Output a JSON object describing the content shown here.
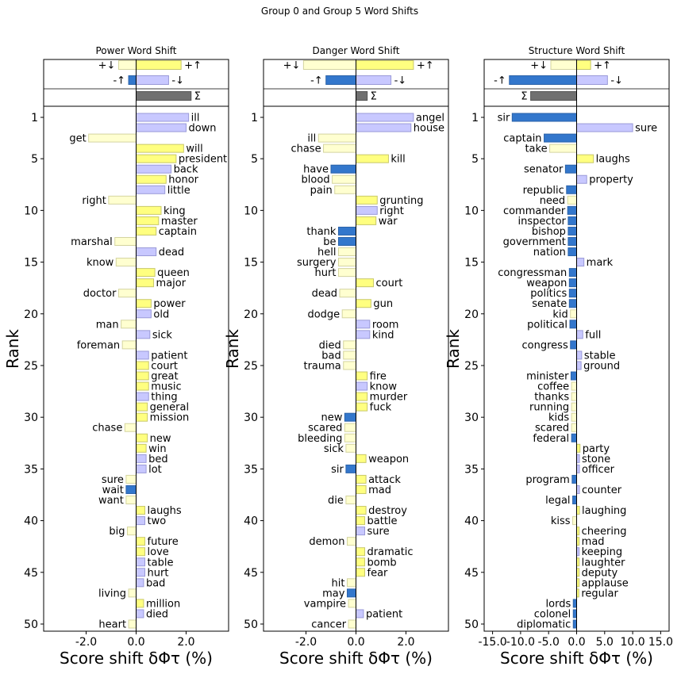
{
  "figure": {
    "suptitle": "Group 0 and Group 5 Word Shifts"
  },
  "colors": {
    "pos_up": "#ffff80",
    "pos_down": "#c8c8ff",
    "neg_up": "#3377cc",
    "neg_down": "#ffffd0",
    "total": "#707070"
  },
  "chart_data": [
    {
      "type": "bar",
      "title": "Power Word Shift",
      "xlabel": "Score shift δΦτ (%)",
      "ylabel": "Rank",
      "xlim": [
        -3.7,
        3.7
      ],
      "xticks": [
        -2.0,
        0.0,
        2.0
      ],
      "xtick_labels": [
        "-2.0",
        "0.0",
        "2.0"
      ],
      "yticks": [
        1,
        5,
        10,
        15,
        20,
        25,
        30,
        35,
        40,
        45,
        50
      ],
      "grid": false,
      "summary": [
        {
          "label_left": "+↓",
          "label_right": "+↑",
          "neg": -0.7,
          "pos": 1.8,
          "neg_type": "neg_down",
          "pos_type": "pos_up"
        },
        {
          "label_left": "-↑",
          "label_right": "-↓",
          "neg": -0.3,
          "pos": 1.3,
          "neg_type": "neg_up",
          "pos_type": "pos_down"
        },
        {
          "label_left": "",
          "label_right": "Σ",
          "neg": 0,
          "pos": 2.2,
          "neg_type": "total",
          "pos_type": "total"
        }
      ],
      "words": [
        {
          "word": "ill",
          "value": 2.1,
          "type": "pos_down"
        },
        {
          "word": "down",
          "value": 2.0,
          "type": "pos_down"
        },
        {
          "word": "get",
          "value": -1.9,
          "type": "neg_down"
        },
        {
          "word": "will",
          "value": 1.9,
          "type": "pos_up"
        },
        {
          "word": "president",
          "value": 1.6,
          "type": "pos_up"
        },
        {
          "word": "back",
          "value": 1.4,
          "type": "pos_down"
        },
        {
          "word": "honor",
          "value": 1.2,
          "type": "pos_up"
        },
        {
          "word": "little",
          "value": 1.15,
          "type": "pos_down"
        },
        {
          "word": "right",
          "value": -1.1,
          "type": "neg_down"
        },
        {
          "word": "king",
          "value": 1.0,
          "type": "pos_up"
        },
        {
          "word": "master",
          "value": 0.9,
          "type": "pos_up"
        },
        {
          "word": "captain",
          "value": 0.8,
          "type": "pos_up"
        },
        {
          "word": "marshal",
          "value": -0.85,
          "type": "neg_down"
        },
        {
          "word": "dead",
          "value": 0.8,
          "type": "pos_down"
        },
        {
          "word": "know",
          "value": -0.8,
          "type": "neg_down"
        },
        {
          "word": "queen",
          "value": 0.75,
          "type": "pos_up"
        },
        {
          "word": "major",
          "value": 0.7,
          "type": "pos_up"
        },
        {
          "word": "doctor",
          "value": -0.7,
          "type": "neg_down"
        },
        {
          "word": "power",
          "value": 0.6,
          "type": "pos_up"
        },
        {
          "word": "old",
          "value": 0.6,
          "type": "pos_down"
        },
        {
          "word": "man",
          "value": -0.6,
          "type": "neg_down"
        },
        {
          "word": "sick",
          "value": 0.55,
          "type": "pos_down"
        },
        {
          "word": "foreman",
          "value": -0.55,
          "type": "neg_down"
        },
        {
          "word": "patient",
          "value": 0.5,
          "type": "pos_down"
        },
        {
          "word": "court",
          "value": 0.5,
          "type": "pos_up"
        },
        {
          "word": "great",
          "value": 0.5,
          "type": "pos_up"
        },
        {
          "word": "music",
          "value": 0.5,
          "type": "pos_up"
        },
        {
          "word": "thing",
          "value": 0.5,
          "type": "pos_down"
        },
        {
          "word": "general",
          "value": 0.45,
          "type": "pos_up"
        },
        {
          "word": "mission",
          "value": 0.45,
          "type": "pos_up"
        },
        {
          "word": "chase",
          "value": -0.45,
          "type": "neg_down"
        },
        {
          "word": "new",
          "value": 0.45,
          "type": "pos_up"
        },
        {
          "word": "win",
          "value": 0.4,
          "type": "pos_up"
        },
        {
          "word": "bed",
          "value": 0.4,
          "type": "pos_down"
        },
        {
          "word": "lot",
          "value": 0.4,
          "type": "pos_down"
        },
        {
          "word": "sure",
          "value": -0.4,
          "type": "neg_down"
        },
        {
          "word": "wait",
          "value": -0.4,
          "type": "neg_up"
        },
        {
          "word": "want",
          "value": -0.4,
          "type": "neg_down"
        },
        {
          "word": "laughs",
          "value": 0.35,
          "type": "pos_up"
        },
        {
          "word": "two",
          "value": 0.35,
          "type": "pos_down"
        },
        {
          "word": "big",
          "value": -0.35,
          "type": "neg_down"
        },
        {
          "word": "future",
          "value": 0.35,
          "type": "pos_up"
        },
        {
          "word": "love",
          "value": 0.35,
          "type": "pos_up"
        },
        {
          "word": "table",
          "value": 0.35,
          "type": "pos_down"
        },
        {
          "word": "hurt",
          "value": 0.35,
          "type": "pos_down"
        },
        {
          "word": "bad",
          "value": 0.3,
          "type": "pos_down"
        },
        {
          "word": "living",
          "value": -0.3,
          "type": "neg_down"
        },
        {
          "word": "million",
          "value": 0.3,
          "type": "pos_up"
        },
        {
          "word": "died",
          "value": 0.3,
          "type": "pos_down"
        },
        {
          "word": "heart",
          "value": -0.3,
          "type": "neg_down"
        }
      ]
    },
    {
      "type": "bar",
      "title": "Danger Word Shift",
      "xlabel": "Score shift δΦτ (%)",
      "ylabel": "Rank",
      "xlim": [
        -3.7,
        3.7
      ],
      "xticks": [
        -2.0,
        0.0,
        2.0
      ],
      "xtick_labels": [
        "-2.0",
        "0.0",
        "2.0"
      ],
      "yticks": [
        1,
        5,
        10,
        15,
        20,
        25,
        30,
        35,
        40,
        45,
        50
      ],
      "grid": false,
      "summary": [
        {
          "label_left": "+↓",
          "label_right": "+↑",
          "neg": -2.1,
          "pos": 2.3,
          "neg_type": "neg_down",
          "pos_type": "pos_up"
        },
        {
          "label_left": "-↑",
          "label_right": "-↓",
          "neg": -1.2,
          "pos": 1.4,
          "neg_type": "neg_up",
          "pos_type": "pos_down"
        },
        {
          "label_left": "",
          "label_right": "Σ",
          "neg": 0,
          "pos": 0.45,
          "neg_type": "total",
          "pos_type": "total"
        }
      ],
      "words": [
        {
          "word": "angel",
          "value": 2.3,
          "type": "pos_down"
        },
        {
          "word": "house",
          "value": 2.2,
          "type": "pos_down"
        },
        {
          "word": "ill",
          "value": -1.5,
          "type": "neg_down"
        },
        {
          "word": "chase",
          "value": -1.3,
          "type": "neg_down"
        },
        {
          "word": "kill",
          "value": 1.3,
          "type": "pos_up"
        },
        {
          "word": "have",
          "value": -1.0,
          "type": "neg_up"
        },
        {
          "word": "blood",
          "value": -0.95,
          "type": "neg_down"
        },
        {
          "word": "pain",
          "value": -0.85,
          "type": "neg_down"
        },
        {
          "word": "grunting",
          "value": 0.85,
          "type": "pos_up"
        },
        {
          "word": "right",
          "value": 0.85,
          "type": "pos_down"
        },
        {
          "word": "war",
          "value": 0.8,
          "type": "pos_up"
        },
        {
          "word": "thank",
          "value": -0.7,
          "type": "neg_up"
        },
        {
          "word": "be",
          "value": -0.7,
          "type": "neg_up"
        },
        {
          "word": "hell",
          "value": -0.7,
          "type": "neg_down"
        },
        {
          "word": "surgery",
          "value": -0.7,
          "type": "neg_down"
        },
        {
          "word": "hurt",
          "value": -0.7,
          "type": "neg_down"
        },
        {
          "word": "court",
          "value": 0.7,
          "type": "pos_up"
        },
        {
          "word": "dead",
          "value": -0.65,
          "type": "neg_down"
        },
        {
          "word": "gun",
          "value": 0.6,
          "type": "pos_up"
        },
        {
          "word": "dodge",
          "value": -0.55,
          "type": "neg_down"
        },
        {
          "word": "room",
          "value": 0.55,
          "type": "pos_down"
        },
        {
          "word": "kind",
          "value": 0.55,
          "type": "pos_down"
        },
        {
          "word": "died",
          "value": -0.5,
          "type": "neg_down"
        },
        {
          "word": "bad",
          "value": -0.5,
          "type": "neg_down"
        },
        {
          "word": "trauma",
          "value": -0.5,
          "type": "neg_down"
        },
        {
          "word": "fire",
          "value": 0.45,
          "type": "pos_up"
        },
        {
          "word": "know",
          "value": 0.45,
          "type": "pos_down"
        },
        {
          "word": "murder",
          "value": 0.45,
          "type": "pos_up"
        },
        {
          "word": "fuck",
          "value": 0.45,
          "type": "pos_up"
        },
        {
          "word": "new",
          "value": -0.45,
          "type": "neg_up"
        },
        {
          "word": "scared",
          "value": -0.45,
          "type": "neg_down"
        },
        {
          "word": "bleeding",
          "value": -0.45,
          "type": "neg_down"
        },
        {
          "word": "sick",
          "value": -0.4,
          "type": "neg_down"
        },
        {
          "word": "weapon",
          "value": 0.4,
          "type": "pos_up"
        },
        {
          "word": "sir",
          "value": -0.4,
          "type": "neg_up"
        },
        {
          "word": "attack",
          "value": 0.4,
          "type": "pos_up"
        },
        {
          "word": "mad",
          "value": 0.4,
          "type": "pos_up"
        },
        {
          "word": "die",
          "value": -0.4,
          "type": "neg_down"
        },
        {
          "word": "destroy",
          "value": 0.4,
          "type": "pos_up"
        },
        {
          "word": "battle",
          "value": 0.35,
          "type": "pos_up"
        },
        {
          "word": "sure",
          "value": 0.35,
          "type": "pos_down"
        },
        {
          "word": "demon",
          "value": -0.35,
          "type": "neg_down"
        },
        {
          "word": "dramatic",
          "value": 0.35,
          "type": "pos_up"
        },
        {
          "word": "bomb",
          "value": 0.35,
          "type": "pos_up"
        },
        {
          "word": "fear",
          "value": 0.35,
          "type": "pos_up"
        },
        {
          "word": "hit",
          "value": -0.35,
          "type": "neg_down"
        },
        {
          "word": "may",
          "value": -0.35,
          "type": "neg_up"
        },
        {
          "word": "vampire",
          "value": -0.3,
          "type": "neg_down"
        },
        {
          "word": "patient",
          "value": 0.3,
          "type": "pos_down"
        },
        {
          "word": "cancer",
          "value": -0.3,
          "type": "neg_down"
        }
      ]
    },
    {
      "type": "bar",
      "title": "Structure Word Shift",
      "xlabel": "Score shift δΦτ (%)",
      "ylabel": "Rank",
      "xlim": [
        -16.5,
        16.5
      ],
      "xticks": [
        -15.0,
        -10.0,
        -5.0,
        0.0,
        5.0,
        10.0,
        15.0
      ],
      "xtick_labels": [
        "-15.0",
        "-10.0",
        "-5.0",
        "0.0",
        "5.0",
        "10.0",
        "15.0"
      ],
      "yticks": [
        1,
        5,
        10,
        15,
        20,
        25,
        30,
        35,
        40,
        45,
        50
      ],
      "grid": false,
      "summary": [
        {
          "label_left": "+↓",
          "label_right": "+↑",
          "neg": -4.6,
          "pos": 2.5,
          "neg_type": "neg_down",
          "pos_type": "pos_up"
        },
        {
          "label_left": "-↑",
          "label_right": "-↓",
          "neg": -12.0,
          "pos": 5.5,
          "neg_type": "neg_up",
          "pos_type": "pos_down"
        },
        {
          "label_left": "Σ",
          "label_right": "",
          "neg": -8.2,
          "pos": 0,
          "neg_type": "total",
          "pos_type": "total"
        }
      ],
      "words": [
        {
          "word": "sir",
          "value": -11.5,
          "type": "neg_up"
        },
        {
          "word": "sure",
          "value": 10.0,
          "type": "pos_down"
        },
        {
          "word": "captain",
          "value": -5.8,
          "type": "neg_up"
        },
        {
          "word": "take",
          "value": -4.8,
          "type": "neg_down"
        },
        {
          "word": "laughs",
          "value": 3.0,
          "type": "pos_up"
        },
        {
          "word": "senator",
          "value": -2.0,
          "type": "neg_up"
        },
        {
          "word": "property",
          "value": 1.8,
          "type": "pos_down"
        },
        {
          "word": "republic",
          "value": -1.8,
          "type": "neg_up"
        },
        {
          "word": "need",
          "value": -1.6,
          "type": "neg_down"
        },
        {
          "word": "commander",
          "value": -1.6,
          "type": "neg_up"
        },
        {
          "word": "inspector",
          "value": -1.5,
          "type": "neg_up"
        },
        {
          "word": "bishop",
          "value": -1.5,
          "type": "neg_up"
        },
        {
          "word": "government",
          "value": -1.5,
          "type": "neg_up"
        },
        {
          "word": "nation",
          "value": -1.5,
          "type": "neg_up"
        },
        {
          "word": "mark",
          "value": 1.3,
          "type": "pos_down"
        },
        {
          "word": "congressman",
          "value": -1.3,
          "type": "neg_up"
        },
        {
          "word": "weapon",
          "value": -1.3,
          "type": "neg_up"
        },
        {
          "word": "politics",
          "value": -1.3,
          "type": "neg_up"
        },
        {
          "word": "senate",
          "value": -1.3,
          "type": "neg_up"
        },
        {
          "word": "kid",
          "value": -1.1,
          "type": "neg_down"
        },
        {
          "word": "political",
          "value": -1.2,
          "type": "neg_up"
        },
        {
          "word": "full",
          "value": 1.1,
          "type": "pos_down"
        },
        {
          "word": "congress",
          "value": -1.1,
          "type": "neg_up"
        },
        {
          "word": "stable",
          "value": 0.9,
          "type": "pos_down"
        },
        {
          "word": "ground",
          "value": 0.8,
          "type": "pos_down"
        },
        {
          "word": "minister",
          "value": -1.0,
          "type": "neg_up"
        },
        {
          "word": "coffee",
          "value": -0.9,
          "type": "neg_down"
        },
        {
          "word": "thanks",
          "value": -0.9,
          "type": "neg_down"
        },
        {
          "word": "running",
          "value": -0.9,
          "type": "neg_down"
        },
        {
          "word": "kids",
          "value": -0.9,
          "type": "neg_down"
        },
        {
          "word": "scared",
          "value": -0.9,
          "type": "neg_down"
        },
        {
          "word": "federal",
          "value": -0.9,
          "type": "neg_up"
        },
        {
          "word": "party",
          "value": 0.6,
          "type": "pos_up"
        },
        {
          "word": "stone",
          "value": 0.5,
          "type": "pos_down"
        },
        {
          "word": "officer",
          "value": 0.5,
          "type": "pos_down"
        },
        {
          "word": "program",
          "value": -0.8,
          "type": "neg_up"
        },
        {
          "word": "counter",
          "value": 0.5,
          "type": "pos_down"
        },
        {
          "word": "legal",
          "value": -0.7,
          "type": "neg_up"
        },
        {
          "word": "laughing",
          "value": 0.5,
          "type": "pos_up"
        },
        {
          "word": "kiss",
          "value": -0.7,
          "type": "neg_down"
        },
        {
          "word": "cheering",
          "value": 0.45,
          "type": "pos_up"
        },
        {
          "word": "mad",
          "value": 0.45,
          "type": "pos_up"
        },
        {
          "word": "keeping",
          "value": 0.45,
          "type": "pos_down"
        },
        {
          "word": "laughter",
          "value": 0.45,
          "type": "pos_up"
        },
        {
          "word": "deputy",
          "value": 0.45,
          "type": "pos_up"
        },
        {
          "word": "applause",
          "value": 0.45,
          "type": "pos_up"
        },
        {
          "word": "regular",
          "value": 0.4,
          "type": "pos_up"
        },
        {
          "word": "lords",
          "value": -0.6,
          "type": "neg_up"
        },
        {
          "word": "colonel",
          "value": -0.6,
          "type": "neg_up"
        },
        {
          "word": "diplomatic",
          "value": -0.6,
          "type": "neg_up"
        }
      ]
    }
  ]
}
